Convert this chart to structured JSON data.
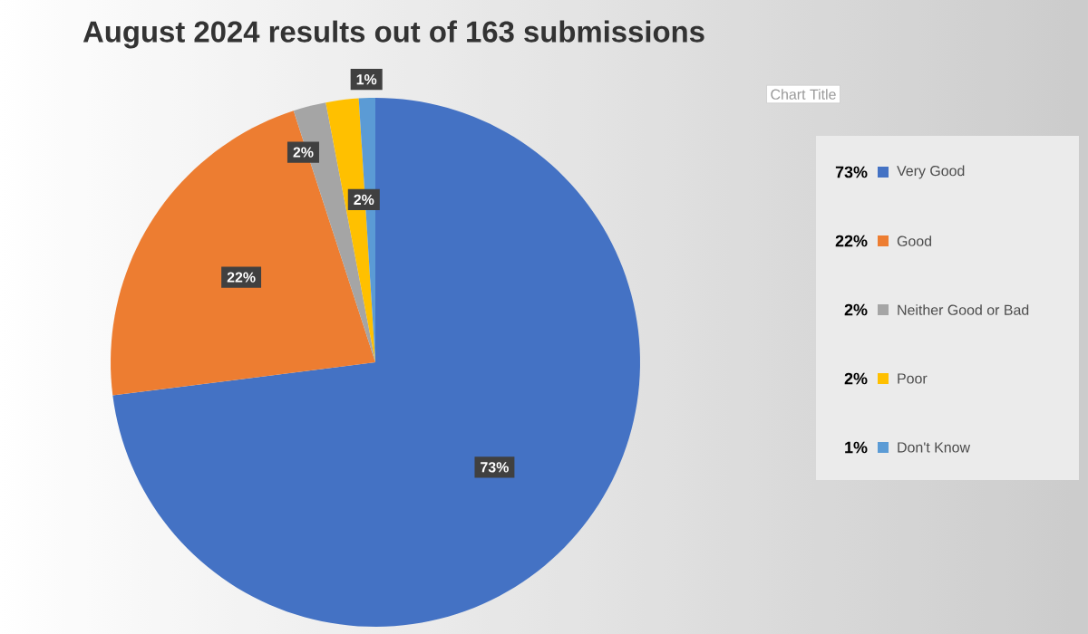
{
  "chart_data": {
    "type": "pie",
    "title": "August 2024 results out of 163 submissions",
    "categories": [
      "Very Good",
      "Good",
      "Neither Good or Bad",
      "Poor",
      "Don't Know"
    ],
    "values": [
      73,
      22,
      2,
      2,
      1
    ],
    "value_labels": [
      "73%",
      "22%",
      "2%",
      "2%",
      "1%"
    ],
    "colors": [
      "#4472c4",
      "#ed7d31",
      "#a5a5a5",
      "#ffc000",
      "#5b9bd5"
    ],
    "legend": "right",
    "annotations": [
      "Chart Title"
    ]
  }
}
